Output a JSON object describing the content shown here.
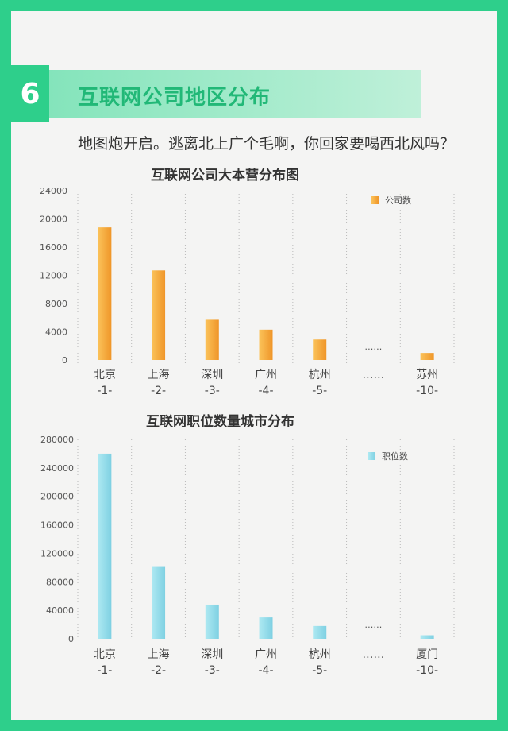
{
  "section": {
    "number": "6",
    "title": "互联网公司地区分布",
    "subtitle": "地图炮开启。逃离北上广个毛啊，你回家要喝西北风吗？"
  },
  "colors": {
    "frame": "#2ecf8b",
    "orange_bar": "#f3a332",
    "blue_bar": "#8ddbe8"
  },
  "chart_data": [
    {
      "type": "bar",
      "title": "互联网公司大本营分布图",
      "categories": [
        {
          "name": "北京",
          "rank": "-1-"
        },
        {
          "name": "上海",
          "rank": "-2-"
        },
        {
          "name": "深圳",
          "rank": "-3-"
        },
        {
          "name": "广州",
          "rank": "-4-"
        },
        {
          "name": "杭州",
          "rank": "-5-"
        },
        {
          "name": "……",
          "rank": ""
        },
        {
          "name": "苏州",
          "rank": "-10-"
        }
      ],
      "series": [
        {
          "name": "公司数",
          "values": [
            18800,
            12700,
            5700,
            4300,
            2900,
            null,
            1000
          ]
        }
      ],
      "ellipsis_label": "……",
      "ylim": [
        0,
        24000
      ],
      "yticks": [
        "0",
        "4000",
        "8000",
        "12000",
        "16000",
        "20000",
        "24000"
      ],
      "legend_position": "top-right",
      "grid": true
    },
    {
      "type": "bar",
      "title": "互联网职位数量城市分布",
      "categories": [
        {
          "name": "北京",
          "rank": "-1-"
        },
        {
          "name": "上海",
          "rank": "-2-"
        },
        {
          "name": "深圳",
          "rank": "-3-"
        },
        {
          "name": "广州",
          "rank": "-4-"
        },
        {
          "name": "杭州",
          "rank": "-5-"
        },
        {
          "name": "……",
          "rank": ""
        },
        {
          "name": "厦门",
          "rank": "-10-"
        }
      ],
      "series": [
        {
          "name": "职位数",
          "values": [
            260000,
            102000,
            48000,
            30000,
            18000,
            null,
            5000
          ]
        }
      ],
      "ellipsis_label": "……",
      "ylim": [
        0,
        280000
      ],
      "yticks": [
        "0",
        "40000",
        "80000",
        "120000",
        "160000",
        "200000",
        "240000",
        "280000"
      ],
      "legend_position": "top-right",
      "grid": true
    }
  ]
}
